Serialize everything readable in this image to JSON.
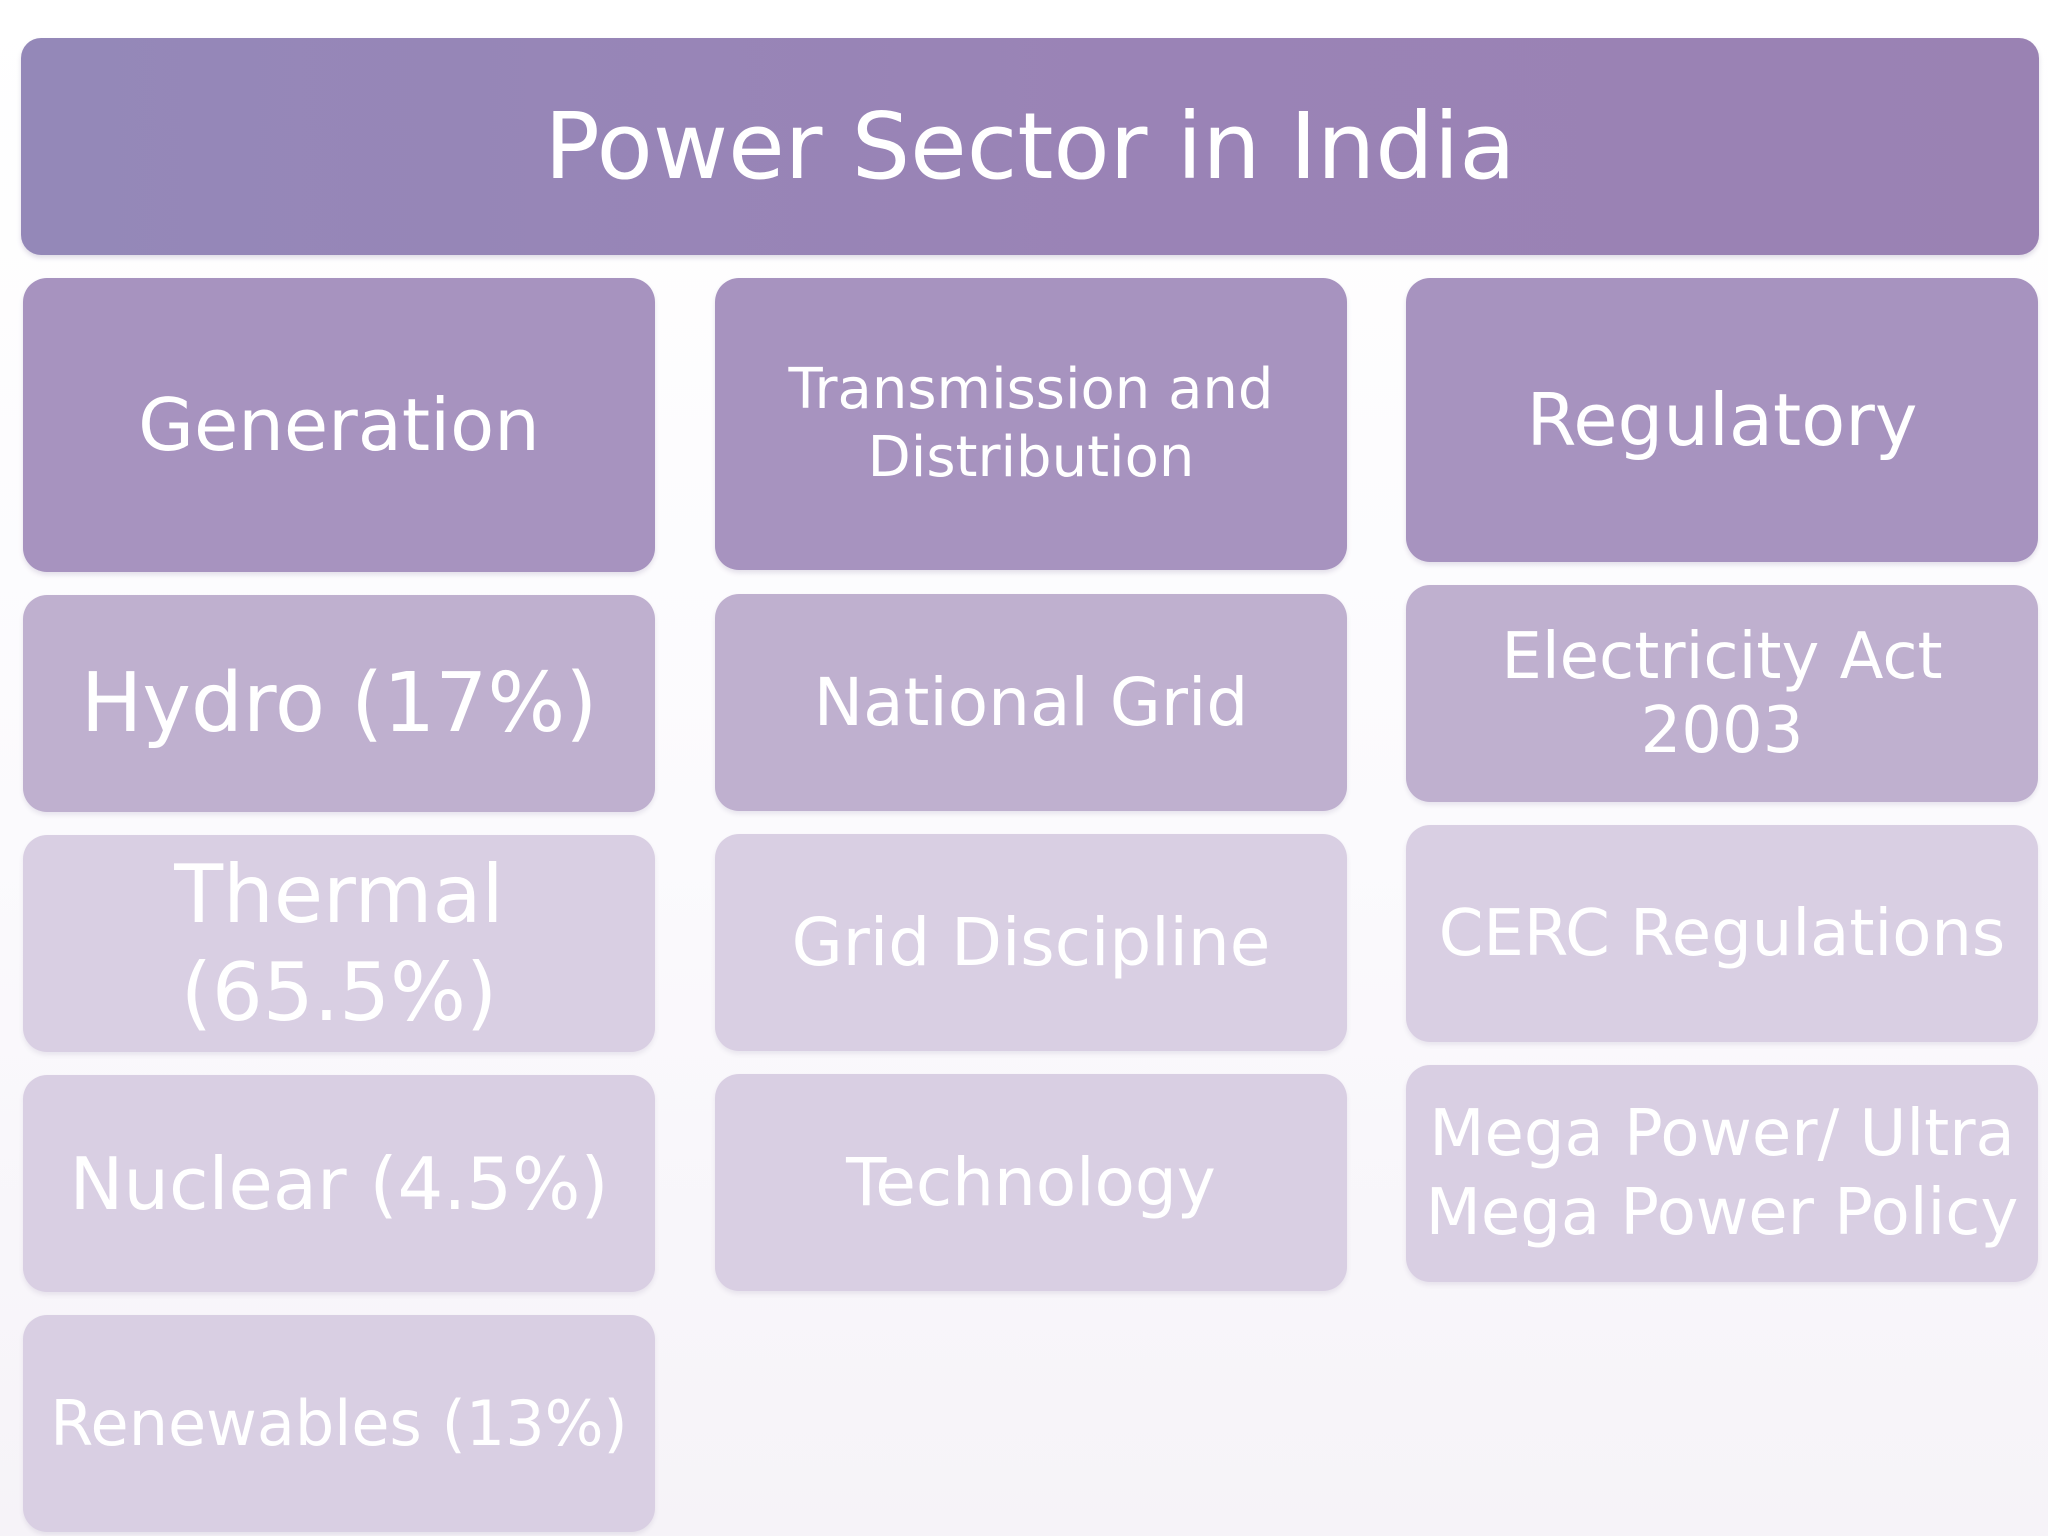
{
  "title": "Power Sector in India",
  "columns": [
    {
      "header": "Generation",
      "items": [
        "Hydro (17%)",
        "Thermal\n(65.5%)",
        "Nuclear (4.5%)",
        "Renewables (13%)"
      ]
    },
    {
      "header": "Transmission and\nDistribution",
      "items": [
        "National  Grid",
        "Grid Discipline",
        "Technology"
      ]
    },
    {
      "header": "Regulatory",
      "items": [
        "Electricity Act 2003",
        "CERC Regulations",
        "Mega Power/ Ultra\nMega Power Policy"
      ]
    }
  ],
  "colors": {
    "title_bg": "#9a85b6",
    "header_bg": "#a793bf",
    "tier1_bg": "#bfb0cf",
    "tier2_bg": "#d9cfe3",
    "text": "#ffffff"
  }
}
